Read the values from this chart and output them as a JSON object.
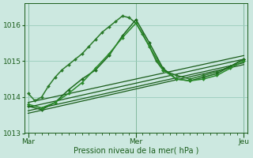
{
  "xlabel": "Pression niveau de la mer( hPa )",
  "ylim": [
    1013.0,
    1016.6
  ],
  "yticks": [
    1013,
    1014,
    1015,
    1016
  ],
  "xtick_labels": [
    "Mar",
    "Mer",
    "Jeu"
  ],
  "xtick_positions": [
    0,
    16,
    32
  ],
  "background_color": "#cce8e0",
  "grid_color": "#99ccbb",
  "line_color_dark": "#1a5c1a",
  "total_x": 32,
  "series": [
    {
      "x": [
        0,
        1,
        2,
        3,
        4,
        5,
        6,
        7,
        8,
        9,
        10,
        11,
        12,
        13,
        14,
        15,
        16,
        17,
        18,
        19,
        20,
        22,
        24,
        26,
        28,
        30,
        32
      ],
      "y": [
        1014.1,
        1013.9,
        1014.0,
        1014.3,
        1014.55,
        1014.75,
        1014.9,
        1015.05,
        1015.2,
        1015.4,
        1015.6,
        1015.8,
        1015.95,
        1016.1,
        1016.25,
        1016.2,
        1016.05,
        1015.75,
        1015.4,
        1015.0,
        1014.75,
        1014.6,
        1014.5,
        1014.6,
        1014.7,
        1014.85,
        1015.05
      ],
      "marker": "D",
      "color": "#2a7a2a",
      "lw": 1.1,
      "ms": 2.0
    },
    {
      "x": [
        0,
        2,
        4,
        6,
        8,
        10,
        12,
        14,
        16,
        18,
        20,
        22,
        24,
        26,
        28,
        30,
        32
      ],
      "y": [
        1013.75,
        1013.65,
        1013.85,
        1014.2,
        1014.5,
        1014.75,
        1015.15,
        1015.7,
        1016.15,
        1015.5,
        1014.8,
        1014.5,
        1014.45,
        1014.55,
        1014.65,
        1014.85,
        1015.05
      ],
      "marker": "D",
      "color": "#1e6b1e",
      "lw": 1.1,
      "ms": 2.0
    },
    {
      "x": [
        0,
        2,
        4,
        6,
        8,
        10,
        12,
        14,
        16,
        18,
        20,
        22,
        24,
        26,
        28,
        30,
        32
      ],
      "y": [
        1013.8,
        1013.7,
        1013.85,
        1014.1,
        1014.4,
        1014.8,
        1015.2,
        1015.65,
        1016.05,
        1015.4,
        1014.75,
        1014.5,
        1014.45,
        1014.5,
        1014.6,
        1014.8,
        1015.0
      ],
      "marker": "D",
      "color": "#2a8a2a",
      "lw": 1.1,
      "ms": 2.0
    },
    {
      "x": [
        0,
        32
      ],
      "y": [
        1013.55,
        1014.9
      ],
      "marker": null,
      "color": "#1a5c1a",
      "lw": 0.9,
      "ms": 0
    },
    {
      "x": [
        0,
        32
      ],
      "y": [
        1013.62,
        1014.95
      ],
      "marker": null,
      "color": "#1a5c1a",
      "lw": 0.9,
      "ms": 0
    },
    {
      "x": [
        0,
        32
      ],
      "y": [
        1013.72,
        1015.05
      ],
      "marker": null,
      "color": "#1a5c1a",
      "lw": 0.9,
      "ms": 0
    },
    {
      "x": [
        0,
        32
      ],
      "y": [
        1013.85,
        1015.15
      ],
      "marker": null,
      "color": "#1a5c1a",
      "lw": 0.9,
      "ms": 0
    }
  ]
}
